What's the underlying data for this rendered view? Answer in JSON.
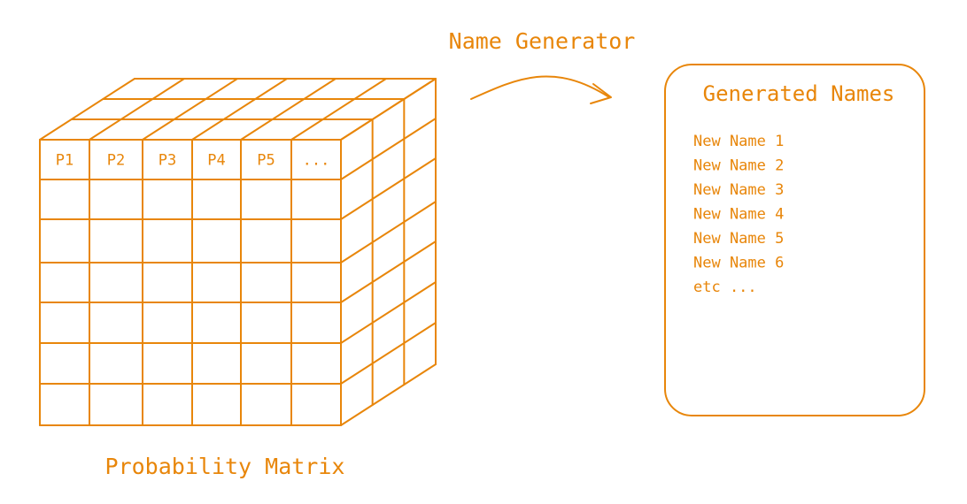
{
  "diagram": {
    "accent_color": "#e8860a",
    "generator_label": "Name Generator",
    "matrix": {
      "label": "Probability Matrix",
      "header_cells": [
        "P1",
        "P2",
        "P3",
        "P4",
        "P5",
        "..."
      ],
      "rows": 6,
      "depth_layers": 2
    },
    "output_box": {
      "title": "Generated Names",
      "names": [
        "New Name 1",
        "New Name 2",
        "New Name 3",
        "New Name 4",
        "New Name 5",
        "New Name 6",
        "etc ..."
      ]
    }
  }
}
